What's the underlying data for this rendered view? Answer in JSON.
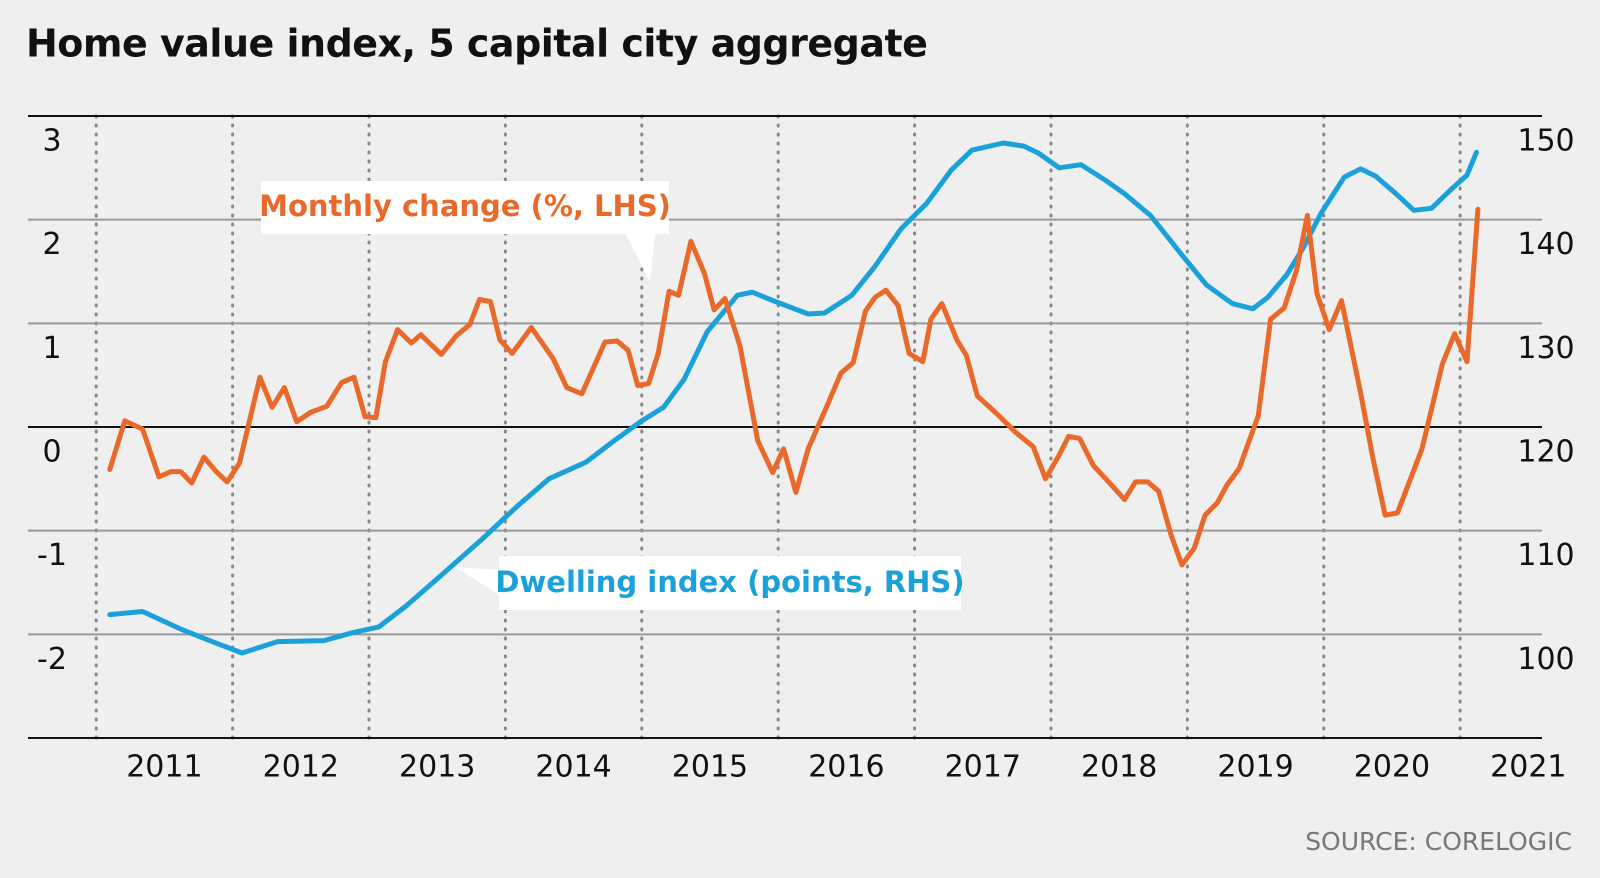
{
  "chart_data": {
    "type": "line",
    "title": "Home value index, 5 capital city aggregate",
    "source": "SOURCE: CORELOGIC",
    "xlim": [
      2010.5,
      2021.6
    ],
    "xticks": [
      2011,
      2012,
      2013,
      2014,
      2015,
      2016,
      2017,
      2018,
      2019,
      2020,
      2021
    ],
    "ylim": [
      -3,
      3
    ],
    "yticks": [
      -2,
      -1,
      0,
      1,
      2,
      3
    ],
    "y2lim": [
      90,
      150
    ],
    "y2ticks": [
      100,
      110,
      120,
      130,
      140,
      150
    ],
    "grid": true,
    "series": [
      {
        "name": "Monthly change (%, LHS)",
        "color": "#e8692a",
        "axis": "y",
        "x": [
          2011.1,
          2011.21,
          2011.34,
          2011.46,
          2011.55,
          2011.62,
          2011.7,
          2011.79,
          2011.88,
          2011.96,
          2012.05,
          2012.2,
          2012.29,
          2012.38,
          2012.47,
          2012.57,
          2012.69,
          2012.8,
          2012.89,
          2012.97,
          2013.05,
          2013.12,
          2013.21,
          2013.31,
          2013.38,
          2013.53,
          2013.64,
          2013.74,
          2013.81,
          2013.89,
          2013.96,
          2014.05,
          2014.19,
          2014.35,
          2014.45,
          2014.56,
          2014.73,
          2014.82,
          2014.9,
          2014.97,
          2015.05,
          2015.12,
          2015.2,
          2015.27,
          2015.36,
          2015.46,
          2015.53,
          2015.61,
          2015.72,
          2015.85,
          2015.96,
          2016.04,
          2016.13,
          2016.22,
          2016.36,
          2016.46,
          2016.55,
          2016.64,
          2016.71,
          2016.79,
          2016.88,
          2016.96,
          2017.06,
          2017.12,
          2017.2,
          2017.31,
          2017.38,
          2017.46,
          2017.61,
          2017.74,
          2017.87,
          2017.96,
          2018.06,
          2018.13,
          2018.21,
          2018.31,
          2018.43,
          2018.54,
          2018.62,
          2018.71,
          2018.79,
          2018.88,
          2018.96,
          2019.05,
          2019.13,
          2019.22,
          2019.29,
          2019.38,
          2019.52,
          2019.61,
          2019.71,
          2019.8,
          2019.88,
          2019.95,
          2020.04,
          2020.13,
          2020.27,
          2020.36,
          2020.45,
          2020.54,
          2020.72,
          2020.87,
          2020.96,
          2021.05,
          2021.13
        ],
        "values": [
          -0.41,
          0.06,
          -0.02,
          -0.48,
          -0.43,
          -0.43,
          -0.54,
          -0.29,
          -0.43,
          -0.53,
          -0.35,
          0.48,
          0.19,
          0.38,
          0.05,
          0.14,
          0.2,
          0.43,
          0.48,
          0.1,
          0.09,
          0.63,
          0.94,
          0.81,
          0.89,
          0.7,
          0.88,
          0.99,
          1.23,
          1.21,
          0.84,
          0.71,
          0.96,
          0.66,
          0.38,
          0.32,
          0.82,
          0.83,
          0.74,
          0.4,
          0.42,
          0.71,
          1.31,
          1.27,
          1.79,
          1.48,
          1.13,
          1.24,
          0.78,
          -0.13,
          -0.44,
          -0.21,
          -0.63,
          -0.21,
          0.21,
          0.52,
          0.62,
          1.12,
          1.25,
          1.32,
          1.17,
          0.71,
          0.63,
          1.04,
          1.19,
          0.84,
          0.69,
          0.3,
          0.12,
          -0.05,
          -0.19,
          -0.5,
          -0.27,
          -0.09,
          -0.11,
          -0.37,
          -0.54,
          -0.7,
          -0.53,
          -0.53,
          -0.62,
          -1.04,
          -1.33,
          -1.17,
          -0.85,
          -0.73,
          -0.56,
          -0.4,
          0.11,
          1.04,
          1.15,
          1.51,
          2.04,
          1.29,
          0.94,
          1.22,
          0.33,
          -0.3,
          -0.85,
          -0.83,
          -0.21,
          0.61,
          0.9,
          0.63,
          2.1
        ]
      },
      {
        "name": "Dwelling index (points, RHS)",
        "color": "#1ba1d9",
        "axis": "y2",
        "x": [
          2011.1,
          2011.34,
          2011.62,
          2011.85,
          2012.07,
          2012.33,
          2012.67,
          2012.89,
          2013.07,
          2013.27,
          2013.53,
          2013.83,
          2014.09,
          2014.32,
          2014.59,
          2014.79,
          2014.99,
          2015.16,
          2015.31,
          2015.48,
          2015.7,
          2015.81,
          2015.96,
          2016.22,
          2016.34,
          2016.54,
          2016.71,
          2016.9,
          2017.09,
          2017.27,
          2017.42,
          2017.65,
          2017.8,
          2017.91,
          2018.06,
          2018.22,
          2018.4,
          2018.54,
          2018.73,
          2018.96,
          2019.14,
          2019.33,
          2019.48,
          2019.59,
          2019.73,
          2019.85,
          2019.98,
          2020.15,
          2020.27,
          2020.38,
          2020.53,
          2020.66,
          2020.79,
          2020.94,
          2021.05,
          2021.12
        ],
        "values": [
          101.9,
          102.2,
          100.5,
          99.3,
          98.2,
          99.3,
          99.4,
          100.2,
          100.7,
          102.7,
          105.7,
          109.2,
          112.4,
          115.0,
          116.6,
          118.6,
          120.5,
          121.9,
          124.6,
          129.2,
          132.7,
          133.0,
          132.2,
          130.9,
          131.0,
          132.7,
          135.5,
          139.1,
          141.6,
          144.8,
          146.7,
          147.4,
          147.1,
          146.4,
          145.0,
          145.3,
          143.8,
          142.5,
          140.4,
          136.6,
          133.7,
          131.9,
          131.4,
          132.5,
          134.7,
          137.3,
          140.6,
          144.1,
          144.9,
          144.2,
          142.5,
          140.9,
          141.1,
          143.0,
          144.3,
          146.5
        ]
      }
    ]
  }
}
